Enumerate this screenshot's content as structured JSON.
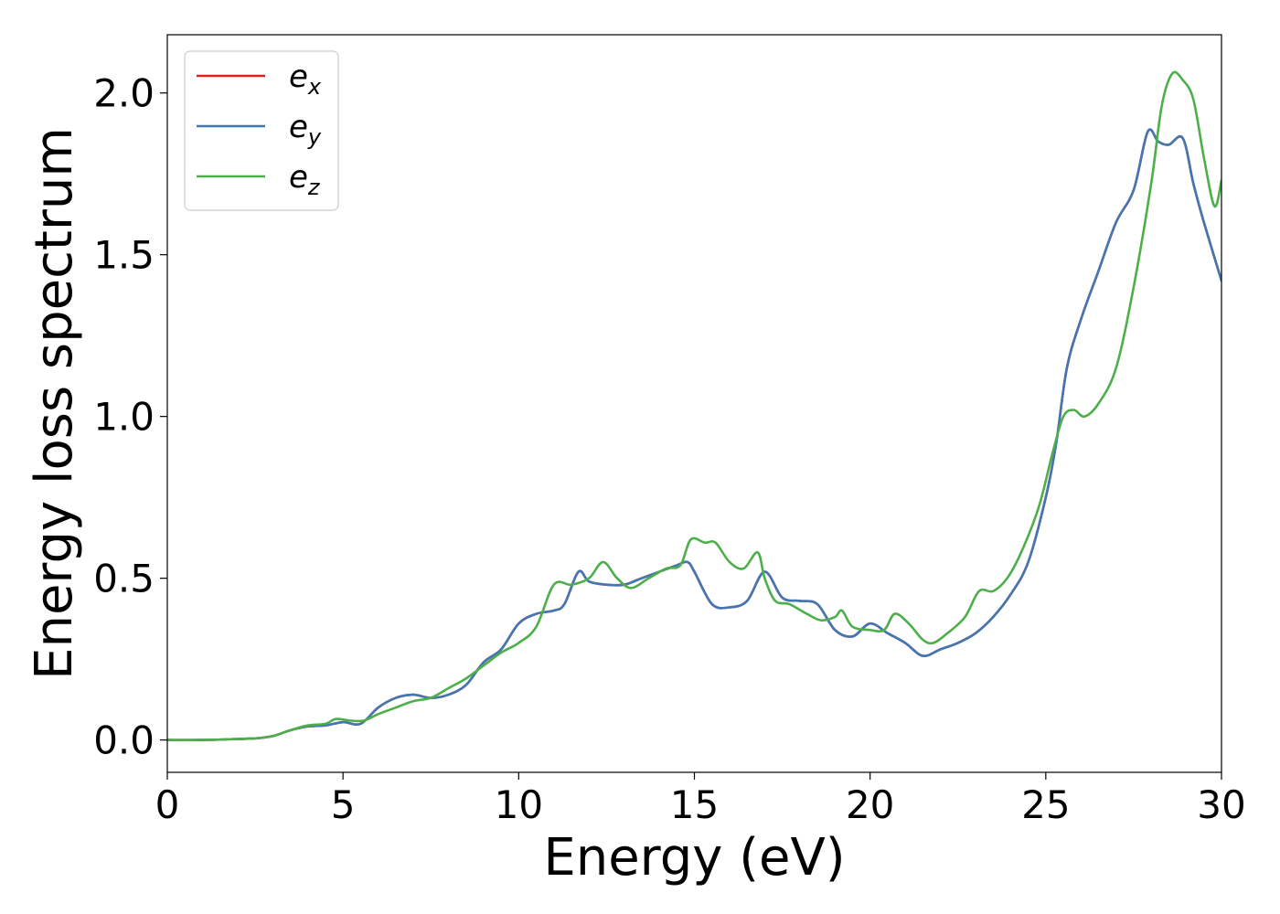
{
  "chart_data": {
    "type": "line",
    "xlabel": "Energy (eV)",
    "ylabel": "Energy loss spectrum",
    "xlim": [
      0,
      30
    ],
    "ylim": [
      -0.1,
      2.18
    ],
    "xticks": [
      0,
      5,
      10,
      15,
      20,
      25,
      30
    ],
    "yticks": [
      0.0,
      0.5,
      1.0,
      1.5,
      2.0
    ],
    "xtick_labels": [
      "0",
      "5",
      "10",
      "15",
      "20",
      "25",
      "30"
    ],
    "ytick_labels": [
      "0.0",
      "0.5",
      "1.0",
      "1.5",
      "2.0"
    ],
    "grid": false,
    "legend_position": "top-left",
    "series": [
      {
        "name": "e",
        "sub": "x",
        "color": "#e41a1c",
        "x": [
          0,
          1,
          2,
          2.5,
          3,
          3.5,
          4,
          4.5,
          5,
          5.5,
          6,
          6.5,
          7,
          7.5,
          8,
          8.5,
          9,
          9.5,
          10,
          10.5,
          11,
          11.3,
          11.7,
          12,
          12.5,
          13,
          13.5,
          14,
          14.5,
          14.8,
          15,
          15.5,
          16,
          16.5,
          17,
          17.5,
          18,
          18.5,
          19,
          19.5,
          20,
          20.5,
          21,
          21.5,
          22,
          22.5,
          23,
          23.5,
          24,
          24.5,
          25,
          25.3,
          25.6,
          26,
          26.5,
          27,
          27.5,
          27.9,
          28.2,
          28.5,
          28.9,
          29.2,
          29.5,
          30
        ],
        "values": [
          0,
          0,
          0.003,
          0.005,
          0.012,
          0.03,
          0.042,
          0.045,
          0.055,
          0.05,
          0.1,
          0.13,
          0.14,
          0.13,
          0.14,
          0.17,
          0.24,
          0.28,
          0.36,
          0.39,
          0.4,
          0.42,
          0.52,
          0.49,
          0.48,
          0.48,
          0.5,
          0.52,
          0.54,
          0.55,
          0.52,
          0.42,
          0.41,
          0.43,
          0.52,
          0.44,
          0.43,
          0.42,
          0.34,
          0.32,
          0.36,
          0.33,
          0.3,
          0.26,
          0.28,
          0.3,
          0.33,
          0.38,
          0.45,
          0.55,
          0.75,
          0.92,
          1.15,
          1.3,
          1.45,
          1.6,
          1.7,
          1.88,
          1.85,
          1.84,
          1.86,
          1.72,
          1.6,
          1.42
        ]
      },
      {
        "name": "e",
        "sub": "y",
        "color": "#4178b4",
        "x": [
          0,
          1,
          2,
          2.5,
          3,
          3.5,
          4,
          4.5,
          5,
          5.5,
          6,
          6.5,
          7,
          7.5,
          8,
          8.5,
          9,
          9.5,
          10,
          10.5,
          11,
          11.3,
          11.7,
          12,
          12.5,
          13,
          13.5,
          14,
          14.5,
          14.8,
          15,
          15.5,
          16,
          16.5,
          17,
          17.5,
          18,
          18.5,
          19,
          19.5,
          20,
          20.5,
          21,
          21.5,
          22,
          22.5,
          23,
          23.5,
          24,
          24.5,
          25,
          25.3,
          25.6,
          26,
          26.5,
          27,
          27.5,
          27.9,
          28.2,
          28.5,
          28.9,
          29.2,
          29.5,
          30
        ],
        "values": [
          0,
          0,
          0.003,
          0.005,
          0.012,
          0.03,
          0.042,
          0.045,
          0.055,
          0.05,
          0.1,
          0.13,
          0.14,
          0.13,
          0.14,
          0.17,
          0.24,
          0.28,
          0.36,
          0.39,
          0.4,
          0.42,
          0.52,
          0.49,
          0.48,
          0.48,
          0.5,
          0.52,
          0.54,
          0.55,
          0.52,
          0.42,
          0.41,
          0.43,
          0.52,
          0.44,
          0.43,
          0.42,
          0.34,
          0.32,
          0.36,
          0.33,
          0.3,
          0.26,
          0.28,
          0.3,
          0.33,
          0.38,
          0.45,
          0.55,
          0.75,
          0.92,
          1.15,
          1.3,
          1.45,
          1.6,
          1.7,
          1.88,
          1.85,
          1.84,
          1.86,
          1.72,
          1.6,
          1.42
        ]
      },
      {
        "name": "e",
        "sub": "z",
        "color": "#4daf4a",
        "x": [
          0,
          1,
          2,
          2.5,
          3,
          3.5,
          4,
          4.5,
          4.8,
          5.2,
          5.6,
          6,
          6.5,
          7,
          7.5,
          8,
          8.5,
          9,
          9.5,
          10,
          10.5,
          11,
          11.5,
          12,
          12.4,
          12.8,
          13.2,
          13.7,
          14.2,
          14.6,
          14.9,
          15.3,
          15.6,
          16,
          16.4,
          16.8,
          17,
          17.3,
          17.7,
          18.2,
          18.6,
          19,
          19.2,
          19.5,
          20,
          20.4,
          20.7,
          21.1,
          21.5,
          21.8,
          22.2,
          22.7,
          23.1,
          23.5,
          23.9,
          24.3,
          24.8,
          25.2,
          25.5,
          25.8,
          26.1,
          26.5,
          27,
          27.5,
          28,
          28.3,
          28.6,
          28.9,
          29.2,
          29.5,
          29.8,
          30
        ],
        "values": [
          0,
          0,
          0.003,
          0.005,
          0.012,
          0.03,
          0.045,
          0.05,
          0.065,
          0.06,
          0.06,
          0.08,
          0.1,
          0.12,
          0.13,
          0.16,
          0.19,
          0.23,
          0.27,
          0.3,
          0.35,
          0.48,
          0.48,
          0.5,
          0.55,
          0.5,
          0.47,
          0.5,
          0.53,
          0.54,
          0.62,
          0.61,
          0.61,
          0.55,
          0.53,
          0.58,
          0.5,
          0.43,
          0.42,
          0.39,
          0.37,
          0.38,
          0.4,
          0.35,
          0.34,
          0.34,
          0.39,
          0.36,
          0.31,
          0.3,
          0.33,
          0.38,
          0.46,
          0.46,
          0.5,
          0.58,
          0.72,
          0.89,
          1.0,
          1.02,
          1.0,
          1.04,
          1.15,
          1.4,
          1.72,
          1.96,
          2.06,
          2.04,
          1.98,
          1.8,
          1.65,
          1.73
        ]
      }
    ]
  }
}
